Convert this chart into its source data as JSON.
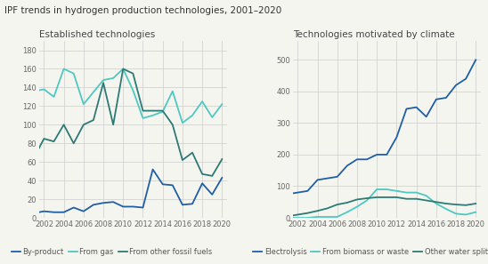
{
  "title": "IPF trends in hydrogen production technologies, 2001–2020",
  "years": [
    2001,
    2002,
    2003,
    2004,
    2005,
    2006,
    2007,
    2008,
    2009,
    2010,
    2011,
    2012,
    2013,
    2014,
    2015,
    2016,
    2017,
    2018,
    2019,
    2020
  ],
  "left_title": "Established technologies",
  "right_title": "Technologies motivated by climate",
  "by_product": [
    5,
    7,
    6,
    6,
    11,
    7,
    14,
    16,
    17,
    12,
    12,
    11,
    52,
    36,
    35,
    14,
    15,
    37,
    25,
    43
  ],
  "from_gas": [
    136,
    138,
    130,
    160,
    155,
    122,
    135,
    148,
    150,
    160,
    137,
    107,
    110,
    114,
    136,
    102,
    110,
    125,
    108,
    122
  ],
  "from_fossil_fuels": [
    65,
    85,
    82,
    100,
    80,
    100,
    105,
    145,
    100,
    160,
    155,
    115,
    115,
    115,
    100,
    62,
    70,
    47,
    45,
    63
  ],
  "electrolysis": [
    75,
    80,
    85,
    120,
    125,
    130,
    165,
    185,
    185,
    200,
    200,
    255,
    345,
    350,
    320,
    375,
    380,
    420,
    440,
    500
  ],
  "from_biomass": [
    0,
    0,
    0,
    3,
    3,
    3,
    18,
    35,
    55,
    90,
    90,
    85,
    80,
    80,
    70,
    45,
    28,
    13,
    10,
    18
  ],
  "water_splitting": [
    5,
    10,
    15,
    22,
    30,
    42,
    48,
    58,
    62,
    65,
    65,
    65,
    60,
    60,
    55,
    50,
    45,
    42,
    40,
    45
  ],
  "color_blue": "#1f5fa6",
  "color_teal": "#4ec8c0",
  "color_dark_teal": "#2d7a74",
  "left_ylim": [
    0,
    190
  ],
  "right_ylim": [
    0,
    560
  ],
  "left_yticks": [
    0,
    20,
    40,
    60,
    80,
    100,
    120,
    140,
    160,
    180
  ],
  "right_yticks": [
    0,
    100,
    200,
    300,
    400,
    500
  ],
  "xticks": [
    2002,
    2004,
    2006,
    2008,
    2010,
    2012,
    2014,
    2016,
    2018,
    2020
  ],
  "legend_left": [
    "By-product",
    "From gas",
    "From other fossil fuels"
  ],
  "legend_right": [
    "Electrolysis",
    "From biomass or waste",
    "Other water splitting"
  ],
  "background_color": "#f5f5f0",
  "title_fontsize": 7.5,
  "subtitle_fontsize": 7.5,
  "legend_fontsize": 6.0,
  "tick_fontsize": 6.0,
  "linewidth": 1.3,
  "grid_color": "#cccccc"
}
